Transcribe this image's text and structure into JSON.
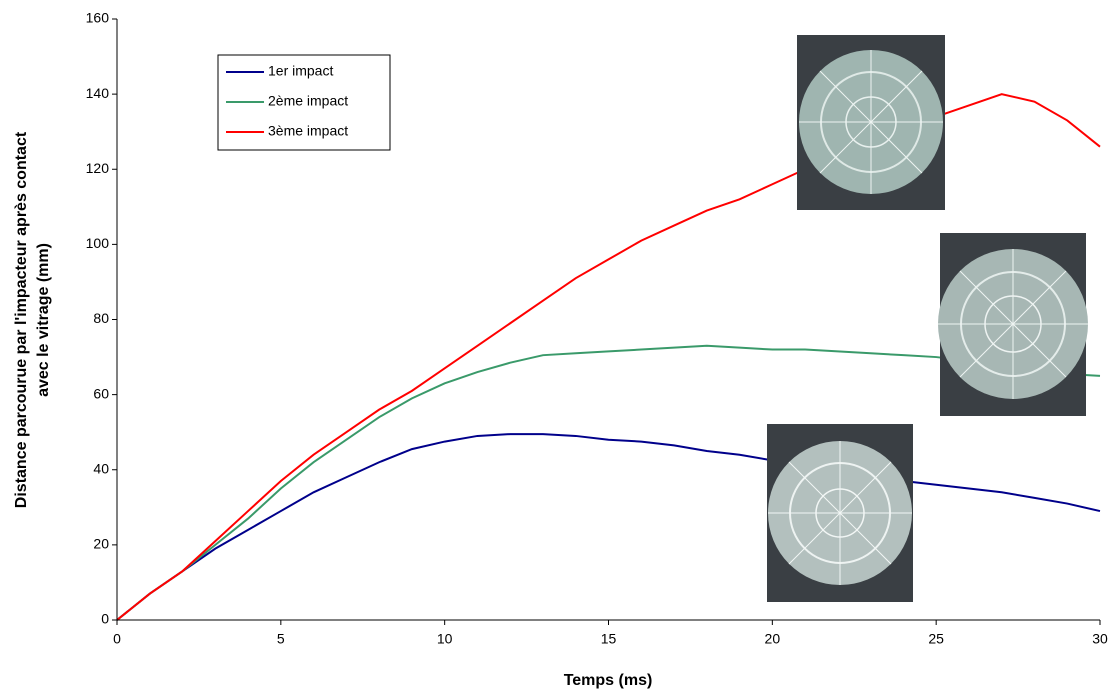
{
  "chart_data": {
    "type": "line",
    "xlabel": "Temps (ms)",
    "ylabel": [
      "Distance parcourue par l'impacteur après contact",
      "avec le vitrage (mm)"
    ],
    "x": [
      0,
      1,
      2,
      3,
      4,
      5,
      6,
      7,
      8,
      9,
      10,
      11,
      12,
      13,
      14,
      15,
      16,
      17,
      18,
      19,
      20,
      21,
      22,
      23,
      24,
      25,
      26,
      27,
      28,
      29,
      30
    ],
    "series": [
      {
        "name": "1er impact",
        "color": "#00008b",
        "values": [
          0,
          7,
          13,
          19,
          24,
          29,
          34,
          38,
          42,
          45.5,
          47.5,
          49,
          49.5,
          49.5,
          49,
          48,
          47.5,
          46.5,
          45,
          44,
          42.5,
          41,
          40,
          38.5,
          37,
          36,
          35,
          34,
          32.5,
          31,
          29
        ]
      },
      {
        "name": "2ème impact",
        "color": "#3a9a6a",
        "values": [
          0,
          7,
          13,
          20,
          27,
          35,
          42,
          48,
          54,
          59,
          63,
          66,
          68.5,
          70.5,
          71,
          71.5,
          72,
          72.5,
          73,
          72.5,
          72,
          72,
          71.5,
          71,
          70.5,
          70,
          69,
          68,
          67,
          65.5,
          65
        ]
      },
      {
        "name": "3ème impact",
        "color": "#ff0000",
        "values": [
          0,
          7,
          13,
          21,
          29,
          37,
          44,
          50,
          56,
          61,
          67,
          73,
          79,
          85,
          91,
          96,
          101,
          105,
          109,
          112,
          116,
          120,
          124,
          128,
          131,
          134,
          137,
          140,
          138,
          133,
          126
        ]
      }
    ],
    "xlim": [
      0,
      30
    ],
    "xticks": [
      0,
      5,
      10,
      15,
      20,
      25,
      30
    ],
    "ylim": [
      0,
      160
    ],
    "yticks": [
      0,
      20,
      40,
      60,
      80,
      100,
      120,
      140,
      160
    ],
    "grid": false,
    "legend": "upper left"
  }
}
